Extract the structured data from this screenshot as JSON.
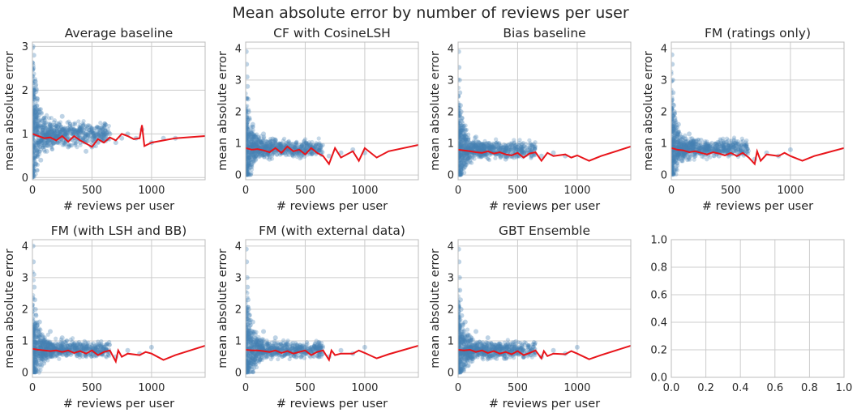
{
  "figure": {
    "title": "Mean absolute error by number of reviews per user",
    "colors": {
      "points": "#4682b4",
      "trend": "#e8141a",
      "grid": "#cccccc",
      "spine": "#bdbdbd"
    }
  },
  "chart_data": [
    {
      "type": "scatter",
      "title": "Average baseline",
      "xlabel": "# reviews per user",
      "ylabel": "mean absolute error",
      "xlim": [
        0,
        1450
      ],
      "ylim": [
        -0.05,
        3.1
      ],
      "xticks": [
        0,
        500,
        1000
      ],
      "yticks": [
        0,
        1,
        2,
        3
      ],
      "grid": true,
      "scatter_note": "dense cloud of semi-transparent blue points concentrated at low review counts",
      "series": [
        {
          "kind": "scatter",
          "x": [
            5,
            8,
            12,
            15,
            20,
            25,
            30,
            40,
            50,
            60,
            70,
            80,
            100,
            120,
            150,
            180,
            200,
            250,
            300,
            350,
            400,
            450,
            500,
            550,
            600,
            650,
            700,
            750,
            800,
            870,
            920,
            1000,
            1100,
            1200
          ],
          "y": [
            3.0,
            2.5,
            2.8,
            2.0,
            1.6,
            2.2,
            1.4,
            1.8,
            1.2,
            1.5,
            0.4,
            1.3,
            0.9,
            0.6,
            1.2,
            0.8,
            1.0,
            1.4,
            0.7,
            1.1,
            0.9,
            0.6,
            0.7,
            0.8,
            0.9,
            1.0,
            0.8,
            0.9,
            1.0,
            0.9,
            1.1,
            0.8,
            0.9,
            0.9
          ]
        },
        {
          "kind": "line",
          "x": [
            0,
            50,
            100,
            150,
            200,
            250,
            300,
            350,
            400,
            450,
            500,
            550,
            600,
            650,
            700,
            750,
            800,
            850,
            900,
            920,
            940,
            1000,
            1100,
            1200,
            1450
          ],
          "y": [
            1.0,
            0.95,
            0.9,
            0.92,
            0.85,
            0.95,
            0.82,
            0.95,
            0.85,
            0.78,
            0.7,
            0.88,
            0.8,
            0.92,
            0.85,
            1.0,
            0.95,
            0.88,
            0.9,
            1.2,
            0.72,
            0.8,
            0.85,
            0.9,
            0.95
          ]
        }
      ]
    },
    {
      "type": "scatter",
      "title": "CF with CosineLSH",
      "xlabel": "# reviews per user",
      "ylabel": "mean absolute error",
      "xlim": [
        0,
        1450
      ],
      "ylim": [
        -0.15,
        4.2
      ],
      "xticks": [
        0,
        500,
        1000
      ],
      "yticks": [
        0,
        1,
        2,
        3,
        4
      ],
      "grid": true,
      "series": [
        {
          "kind": "scatter",
          "x": [
            5,
            8,
            12,
            15,
            20,
            25,
            30,
            40,
            50,
            60,
            80,
            100,
            120,
            150,
            200,
            250,
            300,
            350,
            400,
            450,
            500,
            600,
            700,
            800,
            900,
            1000
          ],
          "y": [
            3.9,
            3.5,
            3.1,
            2.8,
            2.4,
            2.0,
            1.8,
            1.5,
            1.3,
            1.6,
            1.2,
            1.0,
            0.6,
            1.3,
            0.5,
            1.1,
            0.7,
            0.9,
            0.6,
            0.8,
            0.7,
            0.8,
            0.6,
            0.7,
            0.8,
            0.7
          ]
        },
        {
          "kind": "line",
          "x": [
            0,
            50,
            100,
            150,
            200,
            250,
            300,
            350,
            400,
            450,
            500,
            550,
            600,
            650,
            700,
            750,
            800,
            900,
            950,
            1000,
            1100,
            1200,
            1450
          ],
          "y": [
            0.85,
            0.8,
            0.82,
            0.78,
            0.72,
            0.85,
            0.7,
            0.9,
            0.75,
            0.8,
            0.65,
            0.85,
            0.7,
            0.6,
            0.35,
            0.85,
            0.55,
            0.75,
            0.45,
            0.85,
            0.55,
            0.75,
            0.95
          ]
        }
      ]
    },
    {
      "type": "scatter",
      "title": "Bias baseline",
      "xlabel": "# reviews per user",
      "ylabel": "mean absolute error",
      "xlim": [
        0,
        1450
      ],
      "ylim": [
        -0.15,
        4.2
      ],
      "xticks": [
        0,
        500,
        1000
      ],
      "yticks": [
        0,
        1,
        2,
        3,
        4
      ],
      "grid": true,
      "series": [
        {
          "kind": "scatter",
          "x": [
            5,
            8,
            12,
            15,
            20,
            25,
            30,
            40,
            50,
            60,
            80,
            100,
            150,
            200,
            250,
            300,
            350,
            400,
            450,
            500,
            600,
            700,
            800,
            900
          ],
          "y": [
            3.9,
            3.4,
            3.0,
            2.6,
            2.2,
            2.0,
            1.8,
            1.5,
            1.3,
            1.4,
            1.1,
            1.0,
            1.2,
            0.6,
            1.0,
            0.7,
            0.8,
            0.5,
            0.6,
            0.8,
            0.7,
            0.6,
            0.7,
            0.6
          ]
        },
        {
          "kind": "line",
          "x": [
            0,
            100,
            150,
            200,
            250,
            300,
            350,
            400,
            450,
            500,
            550,
            600,
            650,
            700,
            750,
            800,
            900,
            950,
            1000,
            1100,
            1200,
            1450
          ],
          "y": [
            0.8,
            0.75,
            0.72,
            0.7,
            0.75,
            0.68,
            0.72,
            0.65,
            0.62,
            0.7,
            0.55,
            0.68,
            0.72,
            0.45,
            0.7,
            0.6,
            0.65,
            0.55,
            0.62,
            0.45,
            0.6,
            0.9
          ]
        }
      ]
    },
    {
      "type": "scatter",
      "title": "FM (ratings only)",
      "xlabel": "# reviews per user",
      "ylabel": "mean absolute error",
      "xlim": [
        0,
        1450
      ],
      "ylim": [
        -0.15,
        4.2
      ],
      "xticks": [
        0,
        500,
        1000
      ],
      "yticks": [
        0,
        1,
        2,
        3,
        4
      ],
      "grid": true,
      "series": [
        {
          "kind": "scatter",
          "x": [
            5,
            8,
            12,
            15,
            20,
            25,
            30,
            40,
            50,
            60,
            80,
            100,
            150,
            200,
            250,
            300,
            350,
            400,
            450,
            500,
            600,
            700,
            800,
            900,
            1000
          ],
          "y": [
            3.8,
            3.5,
            3.0,
            2.6,
            2.2,
            2.0,
            1.8,
            1.5,
            1.3,
            1.6,
            1.2,
            1.0,
            1.3,
            0.6,
            1.1,
            0.7,
            0.9,
            0.6,
            0.8,
            0.7,
            0.8,
            0.5,
            0.7,
            0.6,
            0.8
          ]
        },
        {
          "kind": "line",
          "x": [
            0,
            50,
            100,
            150,
            200,
            250,
            300,
            350,
            400,
            450,
            500,
            550,
            600,
            650,
            700,
            720,
            750,
            800,
            900,
            950,
            1000,
            1100,
            1200,
            1450
          ],
          "y": [
            0.85,
            0.8,
            0.78,
            0.72,
            0.75,
            0.7,
            0.65,
            0.72,
            0.68,
            0.62,
            0.7,
            0.6,
            0.7,
            0.55,
            0.35,
            0.75,
            0.45,
            0.65,
            0.6,
            0.7,
            0.6,
            0.45,
            0.6,
            0.85
          ]
        }
      ]
    },
    {
      "type": "scatter",
      "title": "FM (with LSH and BB)",
      "xlabel": "# reviews per user",
      "ylabel": "mean absolute error",
      "xlim": [
        0,
        1450
      ],
      "ylim": [
        -0.15,
        4.2
      ],
      "xticks": [
        0,
        500,
        1000
      ],
      "yticks": [
        0,
        1,
        2,
        3,
        4
      ],
      "grid": true,
      "series": [
        {
          "kind": "scatter",
          "x": [
            5,
            8,
            12,
            15,
            20,
            25,
            30,
            40,
            50,
            60,
            80,
            100,
            150,
            200,
            250,
            300,
            350,
            400,
            450,
            500,
            600,
            700,
            800,
            900,
            1000
          ],
          "y": [
            4.0,
            3.5,
            3.1,
            2.7,
            2.3,
            2.0,
            1.8,
            1.5,
            1.3,
            1.6,
            1.2,
            1.0,
            1.3,
            0.6,
            1.1,
            0.7,
            0.9,
            0.6,
            0.8,
            0.7,
            0.8,
            0.5,
            0.7,
            0.6,
            0.8
          ]
        },
        {
          "kind": "line",
          "x": [
            0,
            50,
            100,
            150,
            200,
            250,
            300,
            350,
            400,
            450,
            500,
            550,
            600,
            650,
            700,
            720,
            750,
            800,
            900,
            950,
            1000,
            1100,
            1200,
            1450
          ],
          "y": [
            0.75,
            0.72,
            0.7,
            0.68,
            0.7,
            0.65,
            0.7,
            0.62,
            0.68,
            0.6,
            0.7,
            0.55,
            0.65,
            0.7,
            0.35,
            0.7,
            0.5,
            0.6,
            0.55,
            0.65,
            0.6,
            0.4,
            0.55,
            0.85
          ]
        }
      ]
    },
    {
      "type": "scatter",
      "title": "FM (with external data)",
      "xlabel": "# reviews per user",
      "ylabel": "mean absolute error",
      "xlim": [
        0,
        1450
      ],
      "ylim": [
        -0.15,
        4.2
      ],
      "xticks": [
        0,
        500,
        1000
      ],
      "yticks": [
        0,
        1,
        2,
        3,
        4
      ],
      "grid": true,
      "series": [
        {
          "kind": "scatter",
          "x": [
            5,
            8,
            12,
            15,
            20,
            25,
            30,
            40,
            50,
            60,
            80,
            100,
            150,
            200,
            250,
            300,
            350,
            400,
            450,
            500,
            600,
            700,
            800,
            900,
            1000
          ],
          "y": [
            3.9,
            3.5,
            3.0,
            2.7,
            2.3,
            2.0,
            1.8,
            1.5,
            1.3,
            1.6,
            1.2,
            1.0,
            1.3,
            0.6,
            1.1,
            0.7,
            0.9,
            0.6,
            0.8,
            0.7,
            0.8,
            0.5,
            0.7,
            0.6,
            0.8
          ]
        },
        {
          "kind": "line",
          "x": [
            0,
            50,
            100,
            150,
            200,
            250,
            300,
            350,
            400,
            450,
            500,
            550,
            600,
            650,
            700,
            720,
            750,
            800,
            900,
            950,
            1000,
            1100,
            1200,
            1450
          ],
          "y": [
            0.72,
            0.7,
            0.7,
            0.68,
            0.65,
            0.7,
            0.62,
            0.68,
            0.6,
            0.65,
            0.7,
            0.55,
            0.65,
            0.7,
            0.4,
            0.7,
            0.55,
            0.6,
            0.6,
            0.7,
            0.62,
            0.45,
            0.58,
            0.85
          ]
        }
      ]
    },
    {
      "type": "scatter",
      "title": "GBT Ensemble",
      "xlabel": "# reviews per user",
      "ylabel": "mean absolute error",
      "xlim": [
        0,
        1450
      ],
      "ylim": [
        -0.15,
        4.2
      ],
      "xticks": [
        0,
        500,
        1000
      ],
      "yticks": [
        0,
        1,
        2,
        3,
        4
      ],
      "grid": true,
      "series": [
        {
          "kind": "scatter",
          "x": [
            5,
            8,
            12,
            15,
            20,
            25,
            30,
            40,
            50,
            60,
            80,
            100,
            150,
            200,
            250,
            300,
            350,
            400,
            450,
            500,
            600,
            700,
            800,
            900,
            1000
          ],
          "y": [
            3.9,
            3.5,
            3.0,
            2.6,
            2.3,
            2.0,
            1.8,
            1.5,
            1.3,
            1.6,
            1.2,
            1.0,
            1.3,
            0.6,
            1.1,
            0.7,
            0.9,
            0.6,
            0.8,
            0.7,
            0.8,
            0.5,
            0.7,
            0.6,
            0.8
          ]
        },
        {
          "kind": "line",
          "x": [
            0,
            50,
            100,
            150,
            200,
            250,
            300,
            350,
            400,
            450,
            500,
            550,
            600,
            650,
            700,
            720,
            750,
            800,
            900,
            950,
            1000,
            1100,
            1200,
            1450
          ],
          "y": [
            0.72,
            0.7,
            0.72,
            0.65,
            0.7,
            0.62,
            0.68,
            0.6,
            0.65,
            0.58,
            0.68,
            0.55,
            0.62,
            0.7,
            0.45,
            0.68,
            0.52,
            0.6,
            0.58,
            0.68,
            0.6,
            0.42,
            0.55,
            0.85
          ]
        }
      ]
    },
    {
      "type": "scatter",
      "title": "",
      "xlabel": "",
      "ylabel": "",
      "xlim": [
        0,
        1
      ],
      "ylim": [
        0,
        1
      ],
      "xticks": [
        0.0,
        0.2,
        0.4,
        0.6,
        0.8,
        1.0
      ],
      "yticks": [
        0.0,
        0.2,
        0.4,
        0.6,
        0.8,
        1.0
      ],
      "tick_decimals": 1,
      "grid": true,
      "series": []
    }
  ]
}
